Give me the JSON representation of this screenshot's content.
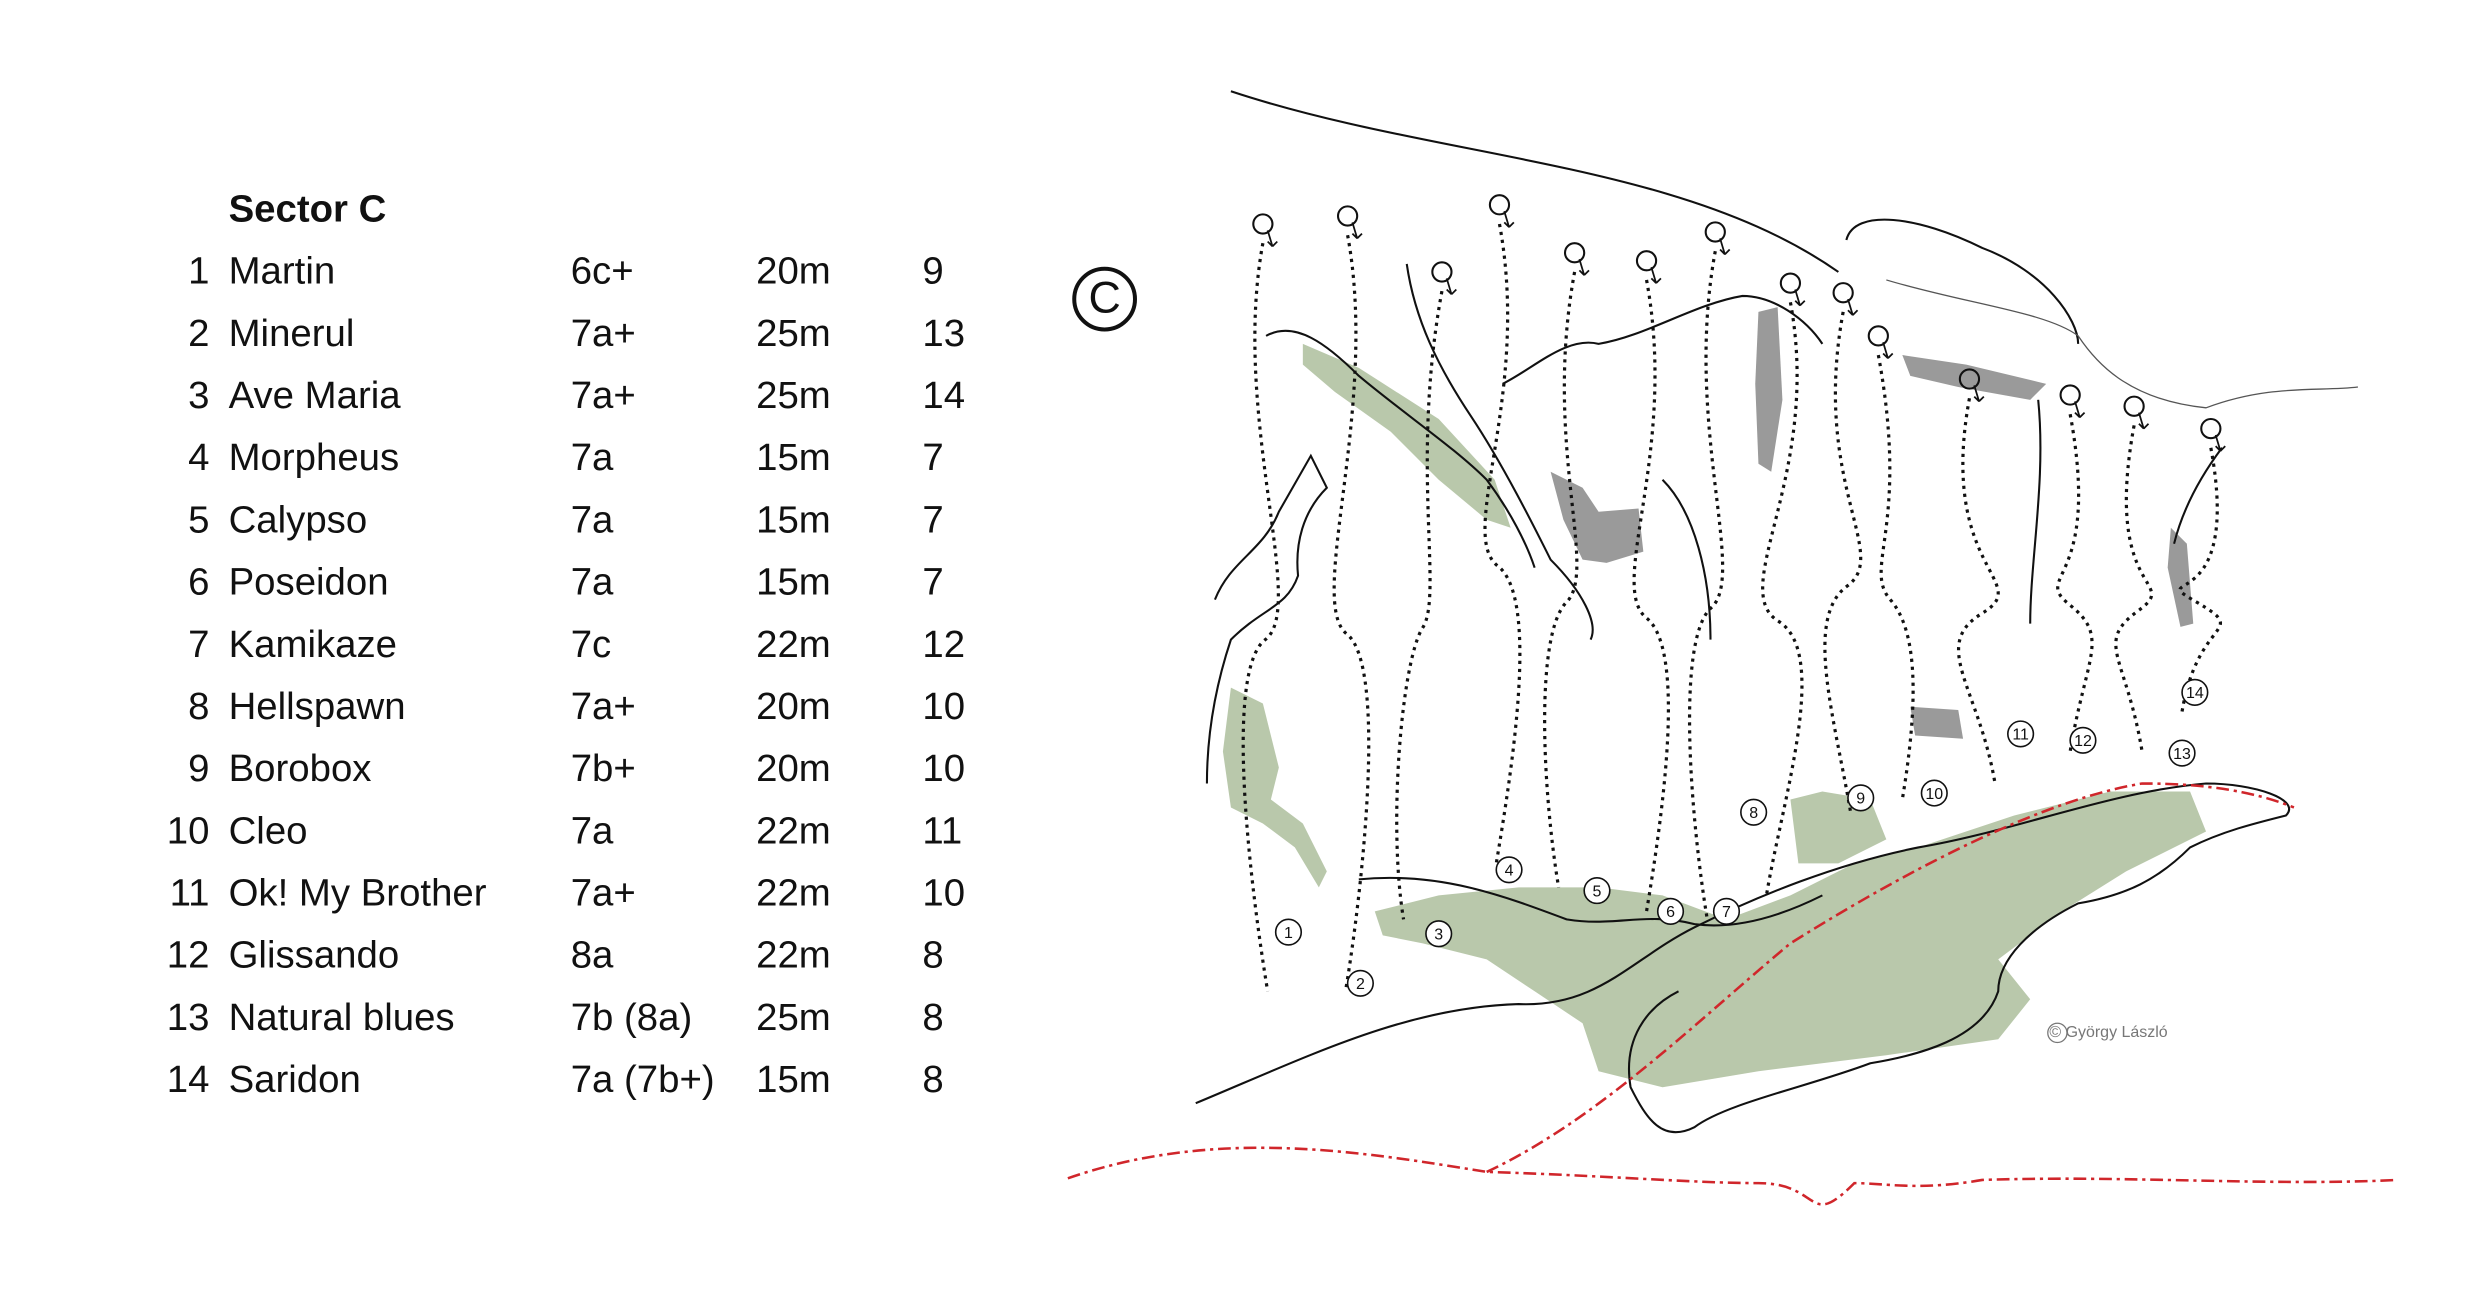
{
  "table": {
    "title": "Sector C",
    "rows": [
      [
        1,
        "Martin",
        "6c+",
        "20m",
        9
      ],
      [
        2,
        "Minerul",
        "7a+",
        "25m",
        13
      ],
      [
        3,
        "Ave Maria",
        "7a+",
        "25m",
        14
      ],
      [
        4,
        "Morpheus",
        "7a",
        "15m",
        7
      ],
      [
        5,
        "Calypso",
        "7a",
        "15m",
        7
      ],
      [
        6,
        "Poseidon",
        "7a",
        "15m",
        7
      ],
      [
        7,
        "Kamikaze",
        "7c",
        "22m",
        12
      ],
      [
        8,
        "Hellspawn",
        "7a+",
        "20m",
        10
      ],
      [
        9,
        "Borobox",
        "7b+",
        "20m",
        10
      ],
      [
        10,
        "Cleo",
        "7a",
        "22m",
        11
      ],
      [
        11,
        "Ok! My Brother",
        "7a+",
        "22m",
        10
      ],
      [
        12,
        "Glissando",
        "8a",
        "22m",
        8
      ],
      [
        13,
        "Natural blues",
        "7b (8a)",
        "25m",
        8
      ],
      [
        14,
        "Saridon",
        "7a (7b+)",
        "15m",
        8
      ]
    ]
  },
  "topo": {
    "sector_label": "C",
    "route_labels": [
      "1",
      "2",
      "3",
      "4",
      "5",
      "6",
      "7",
      "8",
      "9",
      "10",
      "11",
      "12",
      "13",
      "14"
    ],
    "credit": "© György László"
  }
}
